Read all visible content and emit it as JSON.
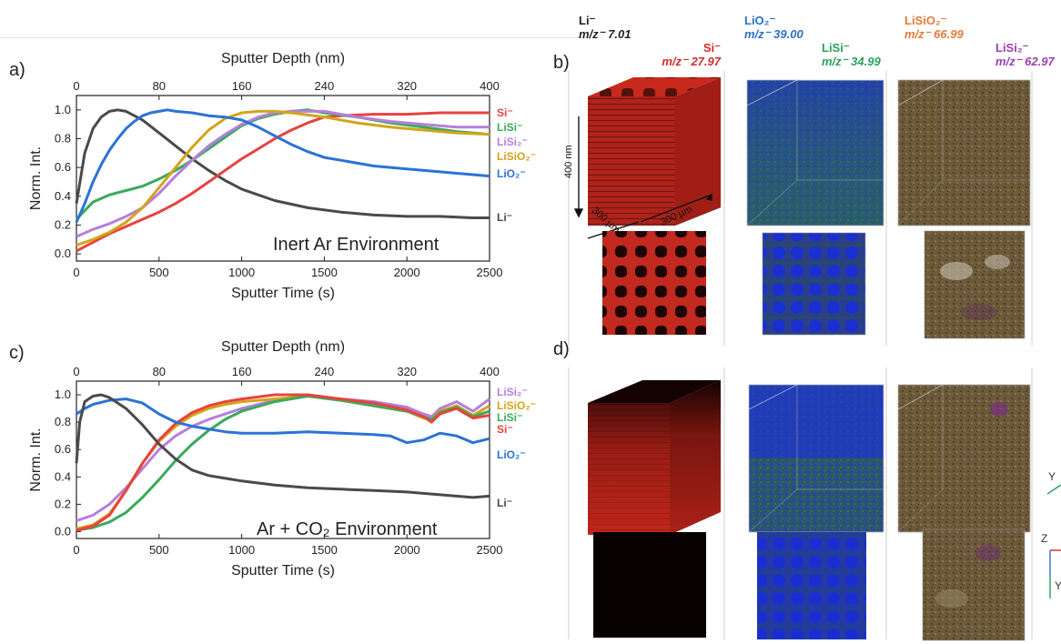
{
  "panels": {
    "a": "a)",
    "b": "b)",
    "c": "c)",
    "d": "d)"
  },
  "top_axis_label": "Sputter Depth (nm)",
  "top_ticks": [
    "0",
    "80",
    "160",
    "240",
    "320",
    "400"
  ],
  "colors": {
    "Li": "#4a4a4a",
    "Si": "#e8423f",
    "LiSi": "#3aaa5c",
    "LiSi2": "#b67fdc",
    "LiSiO2": "#d4a418",
    "LiO2": "#2a73d6"
  },
  "chart_data": [
    {
      "type": "line",
      "panel": "a",
      "annotation": "Inert Ar Environment",
      "xlabel": "Sputter Time (s)",
      "ylabel": "Norm. Int.",
      "xlim": [
        0,
        2500
      ],
      "ylim": [
        -0.05,
        1.1
      ],
      "xticks": [
        "0",
        "500",
        "1000",
        "1500",
        "2000",
        "2500"
      ],
      "yticks": [
        "0.0",
        "0.2",
        "0.4",
        "0.6",
        "0.8",
        "1.0"
      ],
      "grid": false,
      "series": [
        {
          "key": "Li",
          "name": "Li⁻",
          "x": [
            0,
            50,
            100,
            150,
            200,
            250,
            300,
            400,
            500,
            600,
            700,
            800,
            900,
            1000,
            1200,
            1400,
            1600,
            1800,
            2000,
            2200,
            2400,
            2500
          ],
          "y": [
            0.35,
            0.7,
            0.87,
            0.95,
            0.99,
            1.0,
            0.99,
            0.93,
            0.84,
            0.75,
            0.66,
            0.58,
            0.51,
            0.45,
            0.37,
            0.32,
            0.29,
            0.27,
            0.26,
            0.26,
            0.25,
            0.25
          ]
        },
        {
          "key": "Si",
          "name": "Si⁻",
          "x": [
            0,
            100,
            200,
            300,
            400,
            500,
            600,
            700,
            800,
            900,
            1000,
            1100,
            1200,
            1300,
            1400,
            1500,
            1600,
            1800,
            2000,
            2200,
            2400,
            2500
          ],
          "y": [
            0.02,
            0.08,
            0.14,
            0.19,
            0.24,
            0.29,
            0.35,
            0.42,
            0.5,
            0.58,
            0.66,
            0.73,
            0.8,
            0.86,
            0.91,
            0.95,
            0.96,
            0.97,
            0.97,
            0.98,
            0.98,
            0.98
          ]
        },
        {
          "key": "LiSi",
          "name": "LiSi⁻",
          "x": [
            0,
            50,
            100,
            200,
            300,
            400,
            500,
            600,
            700,
            800,
            900,
            1000,
            1100,
            1200,
            1300,
            1400,
            1500,
            1700,
            1900,
            2100,
            2300,
            2500
          ],
          "y": [
            0.24,
            0.3,
            0.36,
            0.41,
            0.44,
            0.47,
            0.52,
            0.58,
            0.65,
            0.73,
            0.81,
            0.89,
            0.94,
            0.97,
            0.99,
            1.0,
            0.98,
            0.95,
            0.91,
            0.88,
            0.85,
            0.83
          ]
        },
        {
          "key": "LiSi2",
          "name": "LiSi₂⁻",
          "x": [
            0,
            100,
            200,
            300,
            400,
            500,
            600,
            700,
            800,
            900,
            1000,
            1100,
            1200,
            1300,
            1400,
            1500,
            1700,
            1900,
            2100,
            2300,
            2500
          ],
          "y": [
            0.12,
            0.17,
            0.21,
            0.26,
            0.32,
            0.42,
            0.54,
            0.65,
            0.75,
            0.83,
            0.9,
            0.95,
            0.98,
            0.99,
            0.99,
            0.99,
            0.95,
            0.92,
            0.9,
            0.88,
            0.88
          ]
        },
        {
          "key": "LiSiO2",
          "name": "LiSiO₂⁻",
          "x": [
            0,
            100,
            200,
            300,
            400,
            500,
            600,
            700,
            800,
            900,
            1000,
            1100,
            1200,
            1300,
            1500,
            1700,
            1900,
            2100,
            2300,
            2500
          ],
          "y": [
            0.06,
            0.1,
            0.15,
            0.22,
            0.32,
            0.46,
            0.6,
            0.74,
            0.86,
            0.94,
            0.98,
            0.99,
            0.99,
            0.98,
            0.95,
            0.91,
            0.88,
            0.86,
            0.84,
            0.83
          ]
        },
        {
          "key": "LiO2",
          "name": "LiO₂⁻",
          "x": [
            0,
            50,
            100,
            150,
            200,
            250,
            300,
            350,
            400,
            450,
            500,
            550,
            600,
            700,
            800,
            900,
            1000,
            1100,
            1200,
            1300,
            1400,
            1500,
            1600,
            1800,
            2000,
            2200,
            2400,
            2500
          ],
          "y": [
            0.22,
            0.35,
            0.5,
            0.62,
            0.72,
            0.8,
            0.87,
            0.92,
            0.96,
            0.98,
            0.99,
            1.0,
            0.99,
            0.98,
            0.96,
            0.95,
            0.93,
            0.88,
            0.82,
            0.76,
            0.71,
            0.67,
            0.65,
            0.61,
            0.59,
            0.57,
            0.55,
            0.54
          ]
        }
      ]
    },
    {
      "type": "line",
      "panel": "c",
      "annotation": "Ar + CO₂ Environment",
      "xlabel": "Sputter Time (s)",
      "ylabel": "Norm. Int.",
      "xlim": [
        0,
        2500
      ],
      "ylim": [
        -0.05,
        1.1
      ],
      "xticks": [
        "0",
        "500",
        "1000",
        "1500",
        "2000",
        "2500"
      ],
      "yticks": [
        "0.0",
        "0.2",
        "0.4",
        "0.6",
        "0.8",
        "1.0"
      ],
      "grid": false,
      "series": [
        {
          "key": "LiSi2",
          "name": "LiSi₂⁻",
          "x": [
            0,
            100,
            200,
            300,
            400,
            500,
            600,
            700,
            800,
            900,
            1000,
            1200,
            1400,
            1600,
            1800,
            2000,
            2100,
            2150,
            2200,
            2300,
            2400,
            2500
          ],
          "y": [
            0.08,
            0.12,
            0.2,
            0.32,
            0.46,
            0.6,
            0.7,
            0.77,
            0.82,
            0.86,
            0.9,
            0.96,
            0.99,
            0.97,
            0.95,
            0.91,
            0.86,
            0.84,
            0.9,
            0.95,
            0.88,
            0.97
          ]
        },
        {
          "key": "LiSiO2",
          "name": "LiSiO₂⁻",
          "x": [
            0,
            100,
            200,
            300,
            400,
            500,
            600,
            700,
            800,
            900,
            1000,
            1200,
            1400,
            1600,
            1800,
            2000,
            2100,
            2150,
            2200,
            2300,
            2400,
            2500
          ],
          "y": [
            0.02,
            0.05,
            0.13,
            0.3,
            0.5,
            0.66,
            0.77,
            0.85,
            0.9,
            0.93,
            0.95,
            0.97,
            0.99,
            0.96,
            0.92,
            0.88,
            0.83,
            0.82,
            0.88,
            0.92,
            0.85,
            0.92
          ]
        },
        {
          "key": "LiSi",
          "name": "LiSi⁻",
          "x": [
            0,
            100,
            200,
            300,
            400,
            500,
            600,
            700,
            800,
            900,
            1000,
            1200,
            1400,
            1600,
            1800,
            2000,
            2100,
            2150,
            2200,
            2300,
            2400,
            2500
          ],
          "y": [
            0.01,
            0.03,
            0.07,
            0.14,
            0.25,
            0.38,
            0.52,
            0.64,
            0.74,
            0.82,
            0.88,
            0.95,
            0.99,
            0.96,
            0.92,
            0.88,
            0.84,
            0.82,
            0.87,
            0.91,
            0.84,
            0.88
          ]
        },
        {
          "key": "Si",
          "name": "Si⁻",
          "x": [
            0,
            100,
            200,
            300,
            400,
            500,
            600,
            700,
            800,
            900,
            1000,
            1200,
            1400,
            1600,
            1800,
            2000,
            2100,
            2150,
            2200,
            2300,
            2400,
            2500
          ],
          "y": [
            0.01,
            0.04,
            0.12,
            0.3,
            0.5,
            0.67,
            0.79,
            0.87,
            0.92,
            0.95,
            0.97,
            1.0,
            1.0,
            0.97,
            0.94,
            0.89,
            0.84,
            0.8,
            0.86,
            0.9,
            0.83,
            0.85
          ]
        },
        {
          "key": "LiO2",
          "name": "LiO₂⁻",
          "x": [
            0,
            50,
            100,
            200,
            300,
            400,
            500,
            600,
            700,
            800,
            900,
            1000,
            1200,
            1400,
            1600,
            1800,
            1900,
            2000,
            2100,
            2200,
            2300,
            2400,
            2500
          ],
          "y": [
            0.86,
            0.9,
            0.93,
            0.96,
            0.97,
            0.94,
            0.86,
            0.8,
            0.77,
            0.75,
            0.73,
            0.72,
            0.72,
            0.73,
            0.72,
            0.71,
            0.7,
            0.65,
            0.67,
            0.72,
            0.7,
            0.65,
            0.68
          ]
        },
        {
          "key": "Li",
          "name": "Li⁻",
          "x": [
            0,
            20,
            50,
            100,
            150,
            200,
            300,
            400,
            500,
            600,
            700,
            800,
            1000,
            1200,
            1400,
            1600,
            1800,
            2000,
            2200,
            2400,
            2500
          ],
          "y": [
            0.5,
            0.8,
            0.95,
            0.99,
            1.0,
            0.98,
            0.9,
            0.78,
            0.64,
            0.53,
            0.45,
            0.41,
            0.37,
            0.34,
            0.32,
            0.31,
            0.3,
            0.29,
            0.27,
            0.25,
            0.26
          ]
        }
      ]
    }
  ],
  "species_labels": [
    {
      "key": "li",
      "ion": "Li⁻",
      "mz": "m/z⁻ 7.01",
      "color": "#111111"
    },
    {
      "key": "si",
      "ion": "Si⁻",
      "mz": "m/z⁻ 27.97",
      "color": "#d42a2a"
    },
    {
      "key": "lio2",
      "ion": "LiO₂⁻",
      "mz": "m/z⁻ 39.00",
      "color": "#2a6fc8"
    },
    {
      "key": "lisi",
      "ion": "LiSi⁻",
      "mz": "m/z⁻ 34.99",
      "color": "#2aa05a"
    },
    {
      "key": "lisio2",
      "ion": "LiSiO₂⁻",
      "mz": "m/z⁻ 66.99",
      "color": "#e57a3a"
    },
    {
      "key": "lisi2",
      "ion": "LiSi₂⁻",
      "mz": "m/z⁻ 62.97",
      "color": "#9b3fb0"
    }
  ],
  "cube_dims": {
    "depth": "400 nm",
    "width1": "300 µm",
    "width2": "300 µm"
  },
  "axis_triad": {
    "y_top": "Y",
    "z": "Z",
    "y_bottom": "Y"
  }
}
